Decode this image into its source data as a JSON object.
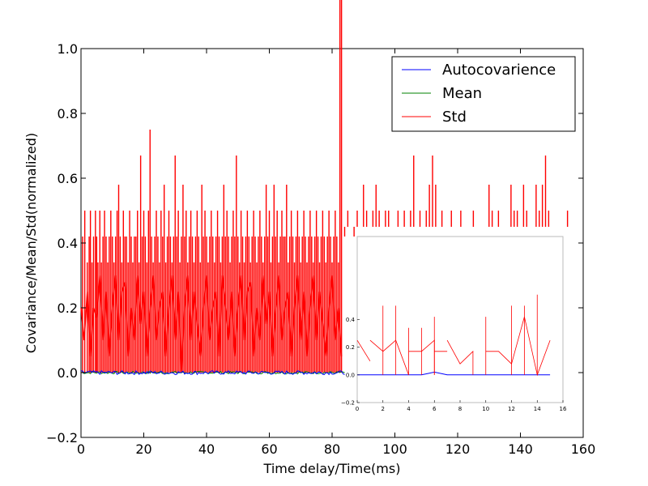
{
  "colors": {
    "autocovariance": "#0000ff",
    "mean": "#008000",
    "std": "#ff0000",
    "axes": "#000000",
    "inset_axes": "#bbbbbb",
    "background": "#ffffff"
  },
  "chart_data": [
    {
      "id": "main",
      "type": "line",
      "title": "",
      "xlabel": "Time delay/Time(ms)",
      "ylabel": "Covariance/Mean/Std(normalized)",
      "xlim": [
        0,
        160
      ],
      "ylim": [
        -0.2,
        1.0
      ],
      "xticks": [
        0,
        20,
        40,
        60,
        80,
        100,
        120,
        140,
        160
      ],
      "xtick_labels": [
        "0",
        "20",
        "40",
        "60",
        "80",
        "100",
        "120",
        "140",
        "160"
      ],
      "yticks": [
        -0.2,
        0.0,
        0.2,
        0.4,
        0.6,
        0.8,
        1.0
      ],
      "ytick_labels": [
        "−0.2",
        "0.0",
        "0.2",
        "0.4",
        "0.6",
        "0.8",
        "1.0"
      ],
      "grid": false,
      "legend": {
        "placement": "top-right",
        "entries": [
          "Autocovarience",
          "Mean",
          "Std"
        ]
      },
      "series": [
        {
          "name": "Autocovarience",
          "color": "#0000ff",
          "x_range": [
            0,
            84
          ],
          "baseline": 0.0,
          "noise_amplitude": 0.006
        },
        {
          "name": "Mean",
          "color": "#008000",
          "x_range": [
            0,
            84
          ],
          "baseline": 0.0,
          "noise_amplitude": 0.004
        },
        {
          "name": "Std",
          "color": "#ff0000",
          "x_range": [
            0,
            155
          ],
          "baseline": 0.0,
          "spike_peaks_x": [
            0.5,
            1.2,
            2,
            2.6,
            3,
            3.5,
            4,
            4.6,
            5,
            5.4,
            6,
            6.5,
            7,
            7.5,
            8,
            8.5,
            9,
            9.5,
            10,
            10.5,
            11,
            11.5,
            12,
            12.5,
            13,
            13.5,
            14,
            14.5,
            15,
            15.5,
            16,
            16.5,
            17,
            17.5,
            18,
            18.5,
            19,
            19.5,
            20,
            20.5,
            21,
            21.5,
            22,
            22.5,
            23,
            23.5,
            24,
            24.5,
            25,
            25.5,
            26,
            26.5,
            27,
            27.5,
            28,
            28.5,
            29,
            29.5,
            30,
            30.5,
            31,
            31.5,
            32,
            32.5,
            33,
            33.5,
            34,
            34.5,
            35,
            35.5,
            36,
            36.5,
            37,
            37.5,
            38,
            38.5,
            39,
            39.5,
            40,
            40.5,
            41,
            41.5,
            42,
            42.5,
            43,
            43.5,
            44,
            44.5,
            45,
            45.5,
            46,
            46.5,
            47,
            47.5,
            48,
            48.5,
            49,
            49.5,
            50,
            50.5,
            51,
            51.5,
            52,
            52.5,
            53,
            53.5,
            54,
            54.5,
            55,
            55.5,
            56,
            56.5,
            57,
            57.5,
            58,
            58.5,
            59,
            59.5,
            60,
            60.5,
            61,
            61.5,
            62,
            62.5,
            63,
            63.5,
            64,
            64.5,
            65,
            65.5,
            66,
            66.5,
            67,
            67.5,
            68,
            68.5,
            69,
            69.5,
            70,
            70.5,
            71,
            71.5,
            72,
            72.5,
            73,
            73.5,
            74,
            74.5,
            75,
            75.5,
            76,
            76.5,
            77,
            77.5,
            78,
            78.5,
            79,
            79.5,
            80,
            80.5,
            81,
            81.5,
            82,
            82.5,
            83
          ],
          "spike_peaks_y": [
            0.42,
            0.5,
            0.34,
            0.42,
            0.5,
            0.34,
            0.42,
            0.5,
            0.42,
            0.34,
            0.5,
            0.34,
            0.42,
            0.5,
            0.42,
            0.34,
            0.42,
            0.5,
            0.42,
            0.34,
            0.42,
            0.5,
            0.58,
            0.42,
            0.34,
            0.5,
            0.42,
            0.42,
            0.34,
            0.5,
            0.42,
            0.34,
            0.42,
            0.42,
            0.5,
            0.34,
            0.67,
            0.42,
            0.5,
            0.42,
            0.34,
            0.5,
            0.75,
            0.42,
            0.34,
            0.42,
            0.5,
            0.42,
            0.34,
            0.5,
            0.42,
            0.58,
            0.34,
            0.42,
            0.5,
            0.42,
            0.34,
            0.42,
            0.67,
            0.42,
            0.5,
            0.34,
            0.42,
            0.58,
            0.42,
            0.5,
            0.34,
            0.42,
            0.5,
            0.42,
            0.34,
            0.42,
            0.5,
            0.42,
            0.34,
            0.58,
            0.42,
            0.5,
            0.42,
            0.34,
            0.42,
            0.5,
            0.42,
            0.34,
            0.42,
            0.5,
            0.42,
            0.34,
            0.42,
            0.58,
            0.42,
            0.5,
            0.42,
            0.34,
            0.42,
            0.5,
            0.42,
            0.67,
            0.42,
            0.34,
            0.5,
            0.42,
            0.34,
            0.42,
            0.5,
            0.42,
            0.34,
            0.42,
            0.5,
            0.42,
            0.34,
            0.42,
            0.5,
            0.42,
            0.34,
            0.42,
            0.58,
            0.42,
            0.5,
            0.34,
            0.42,
            0.58,
            0.42,
            0.5,
            0.34,
            0.42,
            0.5,
            0.42,
            0.42,
            0.58,
            0.34,
            0.42,
            0.5,
            0.42,
            0.34,
            0.42,
            0.5,
            0.42,
            0.34,
            0.42,
            0.5,
            0.42,
            0.34,
            0.42,
            0.5,
            0.42,
            0.34,
            0.42,
            0.5,
            0.42,
            0.34,
            0.42,
            0.5,
            0.42,
            0.34,
            0.42,
            0.5,
            0.42,
            0.34,
            0.42,
            0.5,
            0.42,
            0.34
          ],
          "envelope_points": [
            [
              0,
              0.2
            ],
            [
              1,
              0.1
            ],
            [
              2,
              0.25
            ],
            [
              3,
              0.05
            ],
            [
              4,
              0.2
            ],
            [
              5,
              0.17
            ],
            [
              6,
              0.3
            ],
            [
              7,
              0.1
            ],
            [
              8,
              0.25
            ],
            [
              9,
              0.05
            ],
            [
              10,
              0.2
            ],
            [
              11,
              0.3
            ],
            [
              12,
              0.1
            ],
            [
              13,
              0.25
            ],
            [
              14,
              0.28
            ],
            [
              15,
              0.05
            ],
            [
              16,
              0.2
            ],
            [
              17,
              0.1
            ],
            [
              18,
              0.3
            ],
            [
              19,
              0.15
            ],
            [
              20,
              0.25
            ],
            [
              21,
              0.05
            ],
            [
              22,
              0.2
            ],
            [
              23,
              0.3
            ],
            [
              24,
              0.1
            ],
            [
              25,
              0.2
            ],
            [
              26,
              0.25
            ],
            [
              27,
              0.05
            ],
            [
              28,
              0.2
            ],
            [
              29,
              0.3
            ],
            [
              30,
              0.1
            ],
            [
              31,
              0.25
            ],
            [
              32,
              0.0
            ],
            [
              33,
              0.2
            ],
            [
              34,
              0.3
            ],
            [
              35,
              0.1
            ],
            [
              36,
              0.25
            ],
            [
              37,
              0.15
            ],
            [
              38,
              0.05
            ],
            [
              39,
              0.2
            ],
            [
              40,
              0.3
            ],
            [
              41,
              0.1
            ],
            [
              42,
              0.2
            ],
            [
              43,
              0.25
            ],
            [
              44,
              0.05
            ],
            [
              45,
              0.3
            ],
            [
              46,
              0.2
            ],
            [
              47,
              0.1
            ],
            [
              48,
              0.25
            ],
            [
              49,
              0.05
            ],
            [
              50,
              0.2
            ],
            [
              51,
              0.3
            ],
            [
              52,
              0.1
            ],
            [
              53,
              0.25
            ],
            [
              54,
              0.28
            ],
            [
              55,
              0.05
            ],
            [
              56,
              0.2
            ],
            [
              57,
              0.1
            ],
            [
              58,
              0.3
            ],
            [
              59,
              0.15
            ],
            [
              60,
              0.25
            ],
            [
              61,
              0.05
            ],
            [
              62,
              0.2
            ],
            [
              63,
              0.3
            ],
            [
              64,
              0.1
            ],
            [
              65,
              0.2
            ],
            [
              66,
              0.25
            ],
            [
              67,
              0.05
            ],
            [
              68,
              0.2
            ],
            [
              69,
              0.3
            ],
            [
              70,
              0.1
            ],
            [
              71,
              0.25
            ],
            [
              72,
              0.05
            ],
            [
              73,
              0.2
            ],
            [
              74,
              0.3
            ],
            [
              75,
              0.1
            ],
            [
              76,
              0.25
            ],
            [
              77,
              0.15
            ],
            [
              78,
              0.05
            ],
            [
              79,
              0.2
            ],
            [
              80,
              0.3
            ],
            [
              81,
              0.1
            ],
            [
              82,
              0.2
            ],
            [
              83,
              0.05
            ]
          ],
          "sparse_spikes": [
            {
              "x": 84,
              "y": 0.42
            },
            {
              "x": 85,
              "y": 0.5
            },
            {
              "x": 87,
              "y": 0.42
            },
            {
              "x": 88,
              "y": 0.5
            },
            {
              "x": 90,
              "y": 0.58
            },
            {
              "x": 91,
              "y": 0.5
            },
            {
              "x": 93,
              "y": 0.5
            },
            {
              "x": 94,
              "y": 0.58
            },
            {
              "x": 95,
              "y": 0.5
            },
            {
              "x": 97,
              "y": 0.5
            },
            {
              "x": 98,
              "y": 0.5
            },
            {
              "x": 101,
              "y": 0.5
            },
            {
              "x": 103,
              "y": 0.5
            },
            {
              "x": 105,
              "y": 0.5
            },
            {
              "x": 106,
              "y": 0.67
            },
            {
              "x": 108,
              "y": 0.5
            },
            {
              "x": 110,
              "y": 0.5
            },
            {
              "x": 111,
              "y": 0.58
            },
            {
              "x": 112,
              "y": 0.67
            },
            {
              "x": 113,
              "y": 0.58
            },
            {
              "x": 115,
              "y": 0.5
            },
            {
              "x": 118,
              "y": 0.5
            },
            {
              "x": 121,
              "y": 0.5
            },
            {
              "x": 125,
              "y": 0.5
            },
            {
              "x": 130,
              "y": 0.58
            },
            {
              "x": 131,
              "y": 0.5
            },
            {
              "x": 133,
              "y": 0.5
            },
            {
              "x": 137,
              "y": 0.58
            },
            {
              "x": 138,
              "y": 0.5
            },
            {
              "x": 139,
              "y": 0.5
            },
            {
              "x": 141,
              "y": 0.58
            },
            {
              "x": 142,
              "y": 0.5
            },
            {
              "x": 145,
              "y": 0.58
            },
            {
              "x": 146,
              "y": 0.5
            },
            {
              "x": 147,
              "y": 0.58
            },
            {
              "x": 148,
              "y": 0.67
            },
            {
              "x": 149,
              "y": 0.5
            },
            {
              "x": 155,
              "y": 0.5
            }
          ]
        }
      ]
    },
    {
      "id": "inset",
      "type": "line",
      "title": "",
      "xlabel": "",
      "ylabel": "",
      "xlim": [
        0,
        16
      ],
      "ylim": [
        -0.2,
        1.0
      ],
      "xticks": [
        0,
        2,
        4,
        6,
        8,
        10,
        12,
        14,
        16
      ],
      "xtick_labels": [
        "0",
        "2",
        "4",
        "6",
        "8",
        "10",
        "12",
        "14",
        "16"
      ],
      "yticks": [
        -0.2,
        0.0,
        0.2,
        0.4
      ],
      "ytick_labels": [
        "−0.2",
        "0.0",
        "0.2",
        "0.4"
      ],
      "grid": false,
      "series": [
        {
          "name": "Autocovarience",
          "color": "#0000ff",
          "x": [
            0,
            5,
            5.5,
            6,
            7,
            10,
            12,
            15
          ],
          "y": [
            0.0,
            0.0,
            0.01,
            0.02,
            0.0,
            0.0,
            0.0,
            0.0
          ]
        },
        {
          "name": "Std",
          "color": "#ff0000",
          "segments": [
            [
              [
                0,
                0.25
              ],
              [
                1,
                0.1
              ]
            ],
            [
              [
                1,
                0.25
              ],
              [
                2,
                0.17
              ],
              [
                3,
                0.25
              ],
              [
                4,
                0.0
              ]
            ],
            [
              [
                4,
                0.17
              ],
              [
                5,
                0.17
              ],
              [
                6,
                0.25
              ],
              [
                6,
                0.0
              ]
            ],
            [
              [
                6,
                0.17
              ],
              [
                7,
                0.17
              ]
            ],
            [
              [
                7,
                0.25
              ],
              [
                8,
                0.08
              ],
              [
                9,
                0.17
              ],
              [
                9,
                0.0
              ]
            ],
            [
              [
                10,
                0.17
              ],
              [
                11,
                0.17
              ],
              [
                12,
                0.08
              ],
              [
                13,
                0.42
              ],
              [
                14,
                0.0
              ],
              [
                15,
                0.25
              ]
            ]
          ],
          "spikes": [
            {
              "x": 2,
              "y": 0.5
            },
            {
              "x": 3,
              "y": 0.5
            },
            {
              "x": 4,
              "y": 0.34
            },
            {
              "x": 5,
              "y": 0.34
            },
            {
              "x": 6,
              "y": 0.42
            },
            {
              "x": 10,
              "y": 0.42
            },
            {
              "x": 12,
              "y": 0.5
            },
            {
              "x": 13,
              "y": 0.5
            },
            {
              "x": 14,
              "y": 0.58
            }
          ]
        }
      ]
    }
  ]
}
